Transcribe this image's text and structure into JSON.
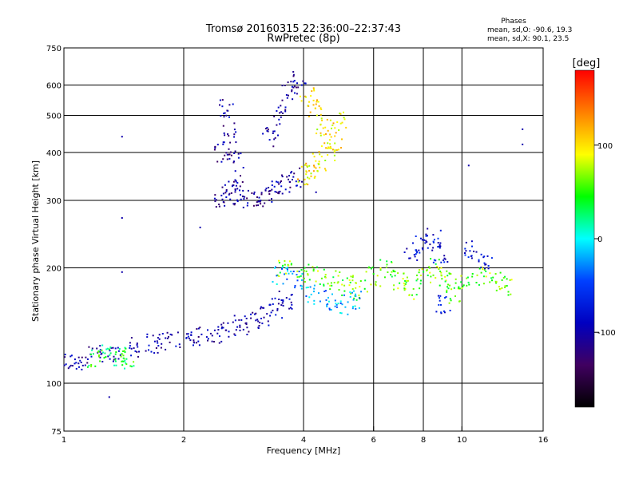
{
  "chart_data": {
    "type": "scatter",
    "title": "Tromsø 20160315 22:36:00–22:37:43",
    "subtitle": "RwPretec (8p)",
    "xlabel": "Frequency [MHz]",
    "ylabel": "Stationary phase Virtual Height [km]",
    "x_scale": "log",
    "y_scale": "log",
    "xlim": [
      1,
      16
    ],
    "ylim": [
      75,
      750
    ],
    "x_ticks": [
      1,
      2,
      4,
      6,
      8,
      10,
      16
    ],
    "x_tick_labels": [
      "1",
      "2",
      "4",
      "6",
      "8",
      "10",
      "16"
    ],
    "y_ticks": [
      75,
      100,
      200,
      300,
      400,
      500,
      600,
      750
    ],
    "y_tick_labels": [
      "75",
      "100",
      "200",
      "300",
      "400",
      "500",
      "600",
      "750"
    ],
    "grid_x": [
      2,
      4,
      6,
      8,
      10
    ],
    "grid_y": [
      100,
      200,
      300,
      400,
      500,
      600
    ],
    "grid": true,
    "stats": {
      "heading": "Phases",
      "line_o": "mean, sd,O: -90.6, 19.3",
      "line_x": "mean, sd,X:  90.1, 23.5"
    },
    "colorbar": {
      "label": "[deg]",
      "min": -180,
      "max": 180,
      "ticks": [
        100,
        0,
        -100
      ],
      "tick_labels": [
        "100",
        "0",
        "-100"
      ],
      "colors": [
        "#ff0000",
        "#ff8000",
        "#ffff00",
        "#00ff00",
        "#00ffff",
        "#0040ff",
        "#0000c0",
        "#400060",
        "#000000"
      ]
    },
    "clusters": [
      {
        "name": "o-trace-lower",
        "phase": -100,
        "points": [
          [
            1.02,
            113
          ],
          [
            1.1,
            114
          ],
          [
            1.2,
            118
          ],
          [
            1.35,
            121
          ],
          [
            1.5,
            124
          ],
          [
            1.65,
            127
          ],
          [
            1.8,
            129
          ],
          [
            2.0,
            131
          ],
          [
            2.2,
            133
          ],
          [
            2.4,
            135
          ],
          [
            2.6,
            138
          ],
          [
            2.8,
            142
          ],
          [
            3.0,
            146
          ],
          [
            3.2,
            150
          ],
          [
            3.4,
            157
          ],
          [
            3.6,
            165
          ]
        ]
      },
      {
        "name": "x-trace-lower-green",
        "phase": 40,
        "points": [
          [
            1.2,
            117
          ],
          [
            1.3,
            120
          ],
          [
            1.4,
            118
          ],
          [
            1.45,
            115
          ]
        ]
      },
      {
        "name": "o-trace-upper",
        "phase": -105,
        "points": [
          [
            2.5,
            300
          ],
          [
            2.6,
            310
          ],
          [
            2.7,
            330
          ],
          [
            2.8,
            305
          ],
          [
            3.0,
            300
          ],
          [
            3.2,
            305
          ],
          [
            3.4,
            320
          ],
          [
            3.6,
            330
          ],
          [
            3.8,
            345
          ],
          [
            2.5,
            400
          ],
          [
            2.6,
            450
          ],
          [
            2.55,
            520
          ],
          [
            2.7,
            380
          ],
          [
            3.3,
            440
          ],
          [
            3.5,
            500
          ],
          [
            3.7,
            580
          ],
          [
            3.9,
            620
          ]
        ]
      },
      {
        "name": "x-trace-upper",
        "phase": 100,
        "points": [
          [
            4.0,
            350
          ],
          [
            4.2,
            360
          ],
          [
            4.4,
            380
          ],
          [
            4.6,
            400
          ],
          [
            4.8,
            430
          ],
          [
            4.5,
            460
          ],
          [
            4.3,
            520
          ],
          [
            4.1,
            560
          ],
          [
            4.9,
            480
          ]
        ]
      },
      {
        "name": "mixed-mid",
        "phase": 60,
        "points": [
          [
            3.6,
            200
          ],
          [
            4.0,
            195
          ],
          [
            4.4,
            190
          ],
          [
            4.8,
            185
          ],
          [
            5.2,
            180
          ],
          [
            5.6,
            175
          ],
          [
            6.0,
            190
          ],
          [
            6.5,
            200
          ],
          [
            7.0,
            185
          ],
          [
            7.5,
            175
          ],
          [
            8.0,
            190
          ],
          [
            8.5,
            200
          ],
          [
            9.0,
            185
          ],
          [
            9.5,
            170
          ],
          [
            10.0,
            180
          ],
          [
            11.0,
            190
          ],
          [
            12.0,
            185
          ],
          [
            13.0,
            180
          ]
        ]
      },
      {
        "name": "cyan-mid",
        "phase": -20,
        "points": [
          [
            3.5,
            190
          ],
          [
            3.8,
            185
          ],
          [
            4.2,
            170
          ],
          [
            4.6,
            165
          ],
          [
            5.0,
            160
          ],
          [
            5.4,
            165
          ]
        ]
      },
      {
        "name": "upper-f2-mid",
        "phase": -80,
        "points": [
          [
            7.5,
            220
          ],
          [
            8.0,
            230
          ],
          [
            8.5,
            240
          ],
          [
            8.8,
            215
          ],
          [
            9.0,
            160
          ],
          [
            10.5,
            225
          ],
          [
            11.5,
            205
          ]
        ]
      },
      {
        "name": "isolated",
        "phase": -100,
        "points": [
          [
            1.4,
            440
          ],
          [
            1.4,
            270
          ],
          [
            1.4,
            195
          ],
          [
            1.3,
            92
          ],
          [
            14.2,
            460
          ],
          [
            14.2,
            420
          ],
          [
            10.4,
            370
          ],
          [
            2.2,
            255
          ],
          [
            4.3,
            315
          ]
        ]
      }
    ]
  }
}
